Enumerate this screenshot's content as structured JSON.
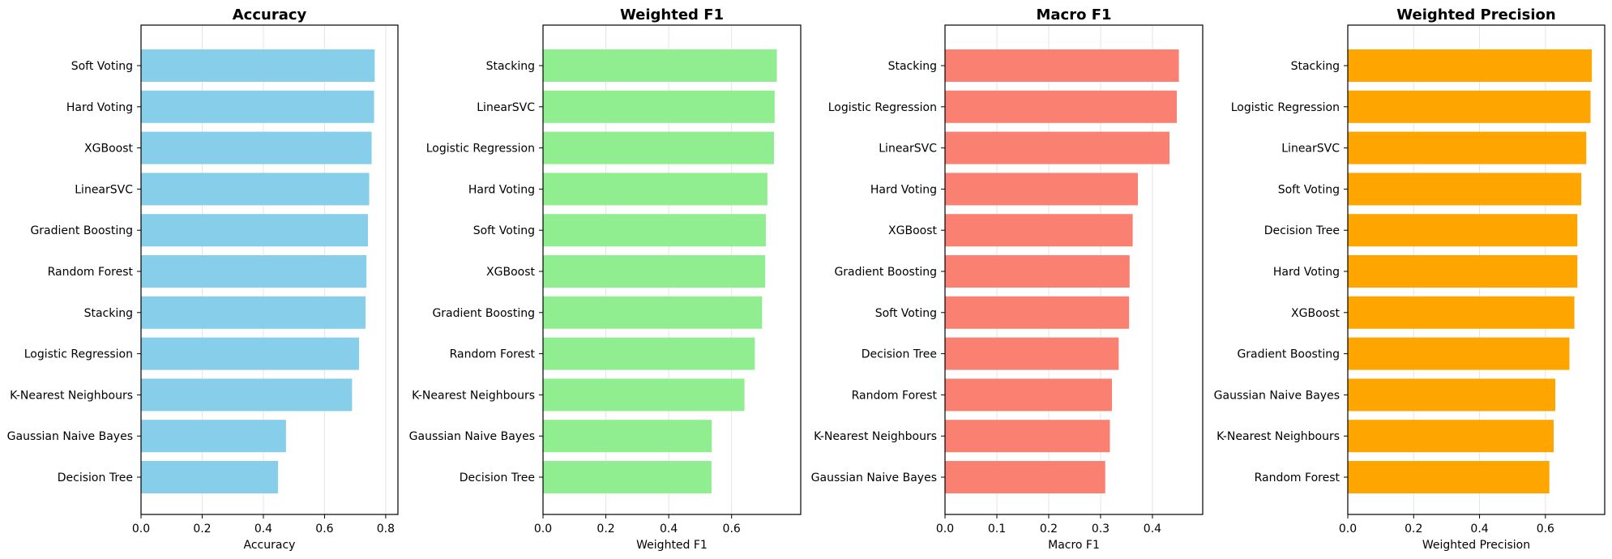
{
  "chart_data": [
    {
      "type": "bar",
      "orientation": "horizontal",
      "title": "Accuracy",
      "xlabel": "Accuracy",
      "categories": [
        "Soft Voting",
        "Hard Voting",
        "XGBoost",
        "LinearSVC",
        "Gradient Boosting",
        "Random Forest",
        "Stacking",
        "Logistic Regression",
        "K-Nearest Neighbours",
        "Gaussian Naive Bayes",
        "Decision Tree"
      ],
      "values": [
        0.764,
        0.762,
        0.754,
        0.746,
        0.742,
        0.737,
        0.734,
        0.713,
        0.69,
        0.474,
        0.448
      ],
      "xlim": [
        0,
        0.84
      ],
      "xticks": [
        "0.0",
        "0.2",
        "0.4",
        "0.6",
        "0.8"
      ],
      "color": "#87ceeb",
      "grid": "vertical"
    },
    {
      "type": "bar",
      "orientation": "horizontal",
      "title": "Weighted F1",
      "xlabel": "Weighted F1",
      "categories": [
        "Stacking",
        "LinearSVC",
        "Logistic Regression",
        "Hard Voting",
        "Soft Voting",
        "XGBoost",
        "Gradient Boosting",
        "Random Forest",
        "K-Nearest Neighbours",
        "Gaussian Naive Bayes",
        "Decision Tree"
      ],
      "values": [
        0.744,
        0.737,
        0.735,
        0.714,
        0.709,
        0.707,
        0.697,
        0.674,
        0.641,
        0.537,
        0.536
      ],
      "xlim": [
        0,
        0.82
      ],
      "xticks": [
        "0.0",
        "0.2",
        "0.4",
        "0.6"
      ],
      "color": "#90ee90",
      "grid": "vertical"
    },
    {
      "type": "bar",
      "orientation": "horizontal",
      "title": "Macro F1",
      "xlabel": "Macro F1",
      "categories": [
        "Stacking",
        "Logistic Regression",
        "LinearSVC",
        "Hard Voting",
        "XGBoost",
        "Gradient Boosting",
        "Soft Voting",
        "Decision Tree",
        "Random Forest",
        "K-Nearest Neighbours",
        "Gaussian Naive Bayes"
      ],
      "values": [
        0.451,
        0.447,
        0.433,
        0.372,
        0.362,
        0.356,
        0.355,
        0.335,
        0.322,
        0.318,
        0.309
      ],
      "xlim": [
        0,
        0.497
      ],
      "xticks": [
        "0.0",
        "0.1",
        "0.2",
        "0.3",
        "0.4"
      ],
      "color": "#fa8072",
      "grid": "vertical"
    },
    {
      "type": "bar",
      "orientation": "horizontal",
      "title": "Weighted Precision",
      "xlabel": "Weighted Precision",
      "categories": [
        "Stacking",
        "Logistic Regression",
        "LinearSVC",
        "Soft Voting",
        "Decision Tree",
        "Hard Voting",
        "XGBoost",
        "Gradient Boosting",
        "Gaussian Naive Bayes",
        "K-Nearest Neighbours",
        "Random Forest"
      ],
      "values": [
        0.741,
        0.737,
        0.724,
        0.709,
        0.697,
        0.697,
        0.688,
        0.673,
        0.63,
        0.625,
        0.612
      ],
      "xlim": [
        0,
        0.78
      ],
      "xticks": [
        "0.0",
        "0.2",
        "0.4",
        "0.6"
      ],
      "color": "#ffa500",
      "grid": "vertical"
    }
  ]
}
